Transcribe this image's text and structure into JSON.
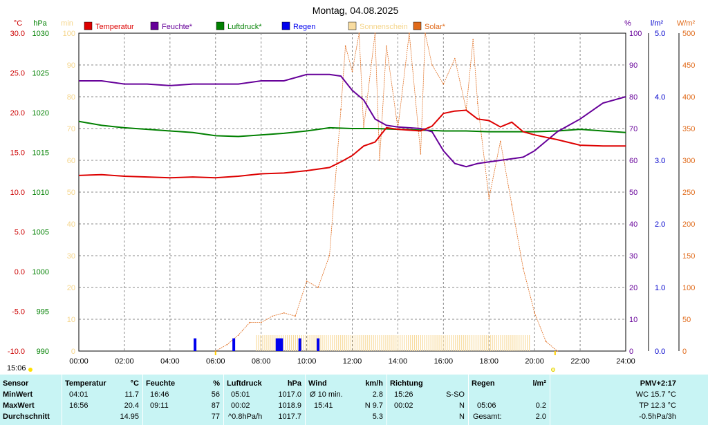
{
  "chart_data": {
    "type": "line",
    "title": "Montag, 04.08.2025",
    "x_ticks": [
      "00:00",
      "02:00",
      "04:00",
      "06:00",
      "08:00",
      "10:00",
      "12:00",
      "14:00",
      "16:00",
      "18:00",
      "20:00",
      "22:00",
      "24:00"
    ],
    "xlim": [
      0,
      24
    ],
    "grid": true,
    "legend_position": "top",
    "axes": {
      "temp": {
        "unit": "°C",
        "color": "#cc0000",
        "ylim": [
          -10,
          30
        ],
        "ticks": [
          "30.0",
          "25.0",
          "20.0",
          "15.0",
          "10.0",
          "5.0",
          "0.0",
          "-5.0",
          "-10.0"
        ]
      },
      "pressure": {
        "unit": "hPa",
        "color": "#008000",
        "ylim": [
          990,
          1030
        ],
        "ticks": [
          "1030",
          "1025",
          "1020",
          "1015",
          "1010",
          "1005",
          "1000",
          "995",
          "990"
        ]
      },
      "min": {
        "unit": "min",
        "color": "#f5d58a",
        "ylim": [
          0,
          100
        ],
        "ticks": [
          "100",
          "90",
          "80",
          "70",
          "60",
          "50",
          "40",
          "30",
          "20",
          "10",
          "0"
        ]
      },
      "humidity": {
        "unit": "%",
        "color": "#660099",
        "ylim": [
          0,
          100
        ],
        "ticks": [
          "100",
          "90",
          "80",
          "70",
          "60",
          "50",
          "40",
          "30",
          "20",
          "10",
          "0"
        ]
      },
      "rain": {
        "unit": "l/m²",
        "color": "#0000cc",
        "ylim": [
          0,
          5
        ],
        "ticks": [
          "5.0",
          "4.0",
          "3.0",
          "2.0",
          "1.0",
          "0.0"
        ]
      },
      "solar": {
        "unit": "W/m²",
        "color": "#e06a1a",
        "ylim": [
          0,
          500
        ],
        "ticks": [
          "500",
          "450",
          "400",
          "350",
          "300",
          "250",
          "200",
          "150",
          "100",
          "50",
          "0"
        ]
      }
    },
    "series": [
      {
        "name": "Temperatur",
        "axis": "temp",
        "color": "#dd0000",
        "x": [
          0,
          1,
          2,
          3,
          4,
          5,
          6,
          7,
          8,
          9,
          10,
          11,
          11.5,
          12,
          12.5,
          13,
          13.5,
          14,
          15,
          15.5,
          16,
          16.5,
          17,
          17.5,
          18,
          18.5,
          19,
          19.5,
          20,
          21,
          22,
          23,
          24
        ],
        "y": [
          12.1,
          12.2,
          12.0,
          11.9,
          11.8,
          11.9,
          11.8,
          12.0,
          12.3,
          12.4,
          12.7,
          13.1,
          13.8,
          14.6,
          15.8,
          16.3,
          18.1,
          17.9,
          17.7,
          18.3,
          19.9,
          20.2,
          20.3,
          19.2,
          19.0,
          18.2,
          18.8,
          17.6,
          17.2,
          16.6,
          15.9,
          15.8,
          15.8
        ]
      },
      {
        "name": "Feuchte*",
        "axis": "humidity",
        "color": "#660099",
        "x": [
          0,
          1,
          2,
          3,
          4,
          5,
          6,
          7,
          8,
          9,
          10,
          11,
          11.5,
          12,
          12.5,
          13,
          13.5,
          14,
          15,
          15.5,
          16,
          16.5,
          17,
          17.5,
          18,
          18.5,
          19,
          19.5,
          20,
          20.5,
          21,
          21.5,
          22,
          23,
          24
        ],
        "y": [
          85,
          85,
          84,
          84,
          83.5,
          84,
          84,
          84,
          85,
          85,
          87,
          87,
          86.5,
          82,
          79,
          73,
          71,
          70.5,
          70,
          69,
          63,
          59,
          58,
          59,
          59.5,
          60,
          60.5,
          61,
          63,
          66,
          69,
          71,
          73,
          78,
          80
        ]
      },
      {
        "name": "Luftdruck*",
        "axis": "pressure",
        "color": "#008000",
        "x": [
          0,
          1,
          2,
          3,
          4,
          5,
          6,
          7,
          8,
          9,
          10,
          11,
          12,
          13,
          14,
          15,
          16,
          17,
          18,
          19,
          20,
          21,
          22,
          23,
          24
        ],
        "y": [
          1018.9,
          1018.4,
          1018.1,
          1017.9,
          1017.7,
          1017.5,
          1017.1,
          1017.0,
          1017.2,
          1017.4,
          1017.7,
          1018.1,
          1018.0,
          1018.0,
          1017.9,
          1017.8,
          1017.7,
          1017.7,
          1017.6,
          1017.6,
          1017.6,
          1017.7,
          1017.9,
          1017.7,
          1017.5
        ]
      },
      {
        "name": "Regen",
        "axis": "rain",
        "color": "#0000ee",
        "x": [
          5.1,
          6.8,
          8.7,
          8.8,
          8.9,
          9.7,
          10.5
        ],
        "y": [
          0.2,
          0.2,
          0.2,
          0.2,
          0.2,
          0.2,
          0.2
        ]
      },
      {
        "name": "Sonnenschein",
        "axis": "min",
        "color": "#f8dca0",
        "x": [
          7.8,
          19.8
        ],
        "y": [
          5,
          5
        ]
      },
      {
        "name": "Solar*",
        "axis": "solar",
        "color": "#e06a1a",
        "x": [
          6.0,
          6.5,
          7.0,
          7.5,
          8.0,
          8.5,
          9.0,
          9.5,
          10.0,
          10.5,
          11.0,
          11.5,
          11.7,
          12.0,
          12.3,
          12.5,
          13.0,
          13.2,
          13.5,
          14.0,
          14.5,
          15.0,
          15.2,
          15.5,
          16.0,
          16.5,
          17.0,
          17.3,
          17.5,
          18.0,
          18.5,
          19.0,
          19.5,
          20.0,
          20.5,
          21.0
        ],
        "y": [
          0,
          10,
          25,
          45,
          45,
          55,
          60,
          55,
          110,
          100,
          150,
          380,
          480,
          440,
          500,
          350,
          500,
          300,
          480,
          350,
          500,
          310,
          500,
          450,
          420,
          460,
          380,
          490,
          390,
          240,
          330,
          230,
          130,
          60,
          15,
          0
        ]
      }
    ]
  },
  "header": {
    "unit_temp": "°C",
    "unit_hpa": "hPa",
    "unit_min": "min",
    "unit_pct": "%",
    "unit_rain": "l/m²",
    "unit_solar": "W/m²"
  },
  "footer": {
    "time_left": "15:06"
  },
  "stats": {
    "sensor": {
      "header": "Sensor",
      "r1": "MinWert",
      "r2": "MaxWert",
      "r3": "Durchschnitt"
    },
    "temp": {
      "header": "Temperatur",
      "unit": "°C",
      "min_time": "04:01",
      "min_val": "11.7",
      "max_time": "16:56",
      "max_val": "20.4",
      "avg_val": "14.95"
    },
    "feuchte": {
      "header": "Feuchte",
      "unit": "%",
      "min_time": "16:46",
      "min_val": "56",
      "max_time": "09:11",
      "max_val": "87",
      "avg_val": "77"
    },
    "luftdruck": {
      "header": "Luftdruck",
      "unit": "hPa",
      "min_time": "05:01",
      "min_val": "1017.0",
      "max_time": "00:02",
      "max_val": "1018.9",
      "avg_label": "^0.8hPa/h",
      "avg_val": "1017.7"
    },
    "wind": {
      "header": "Wind",
      "unit": "km/h",
      "r1_label": "Ø 10 min.",
      "r1_val": "2.8",
      "r2_time": "15:41",
      "r2_val": "N 9.7",
      "r3_val": "5.3"
    },
    "richtung": {
      "header": "Richtung",
      "r1_time": "15:26",
      "r1_val": "S-SO",
      "r2_time": "00:02",
      "r2_val": "N",
      "r3_val": "N"
    },
    "regen": {
      "header": "Regen",
      "unit": "l/m²",
      "r2_time": "05:06",
      "r2_val": "0.2",
      "r3_label": "Gesamt:",
      "r3_val": "2.0"
    },
    "pmv": {
      "header": "PMV+2:17",
      "r1": "WC 15.7 °C",
      "r2": "TP 12.3 °C",
      "r3": "-0.5hPa/3h"
    }
  }
}
